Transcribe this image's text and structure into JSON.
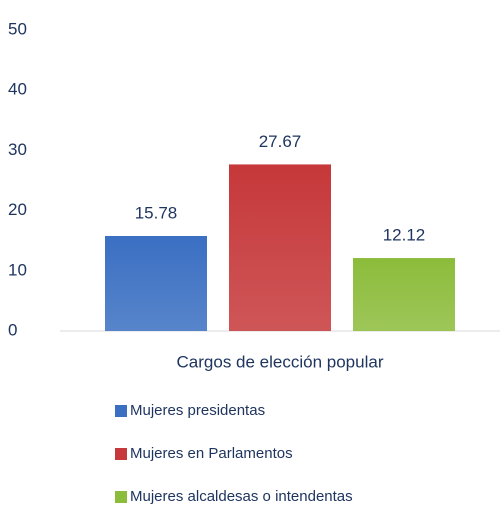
{
  "chart_data": {
    "type": "bar",
    "categories": [
      "Cargos de elección popular"
    ],
    "series": [
      {
        "name": "Mujeres presidentas",
        "color": "#3a6fc2",
        "values": [
          15.78
        ]
      },
      {
        "name": "Mujeres en Parlamentos",
        "color": "#c6383a",
        "values": [
          27.67
        ]
      },
      {
        "name": "Mujeres alcaldesas o intendentas",
        "color": "#8cbc3b",
        "values": [
          12.12
        ]
      }
    ],
    "ylim": [
      0,
      50
    ],
    "yticks": [
      0,
      10,
      20,
      30,
      40,
      50
    ],
    "grid": false,
    "legend": "bottom"
  }
}
